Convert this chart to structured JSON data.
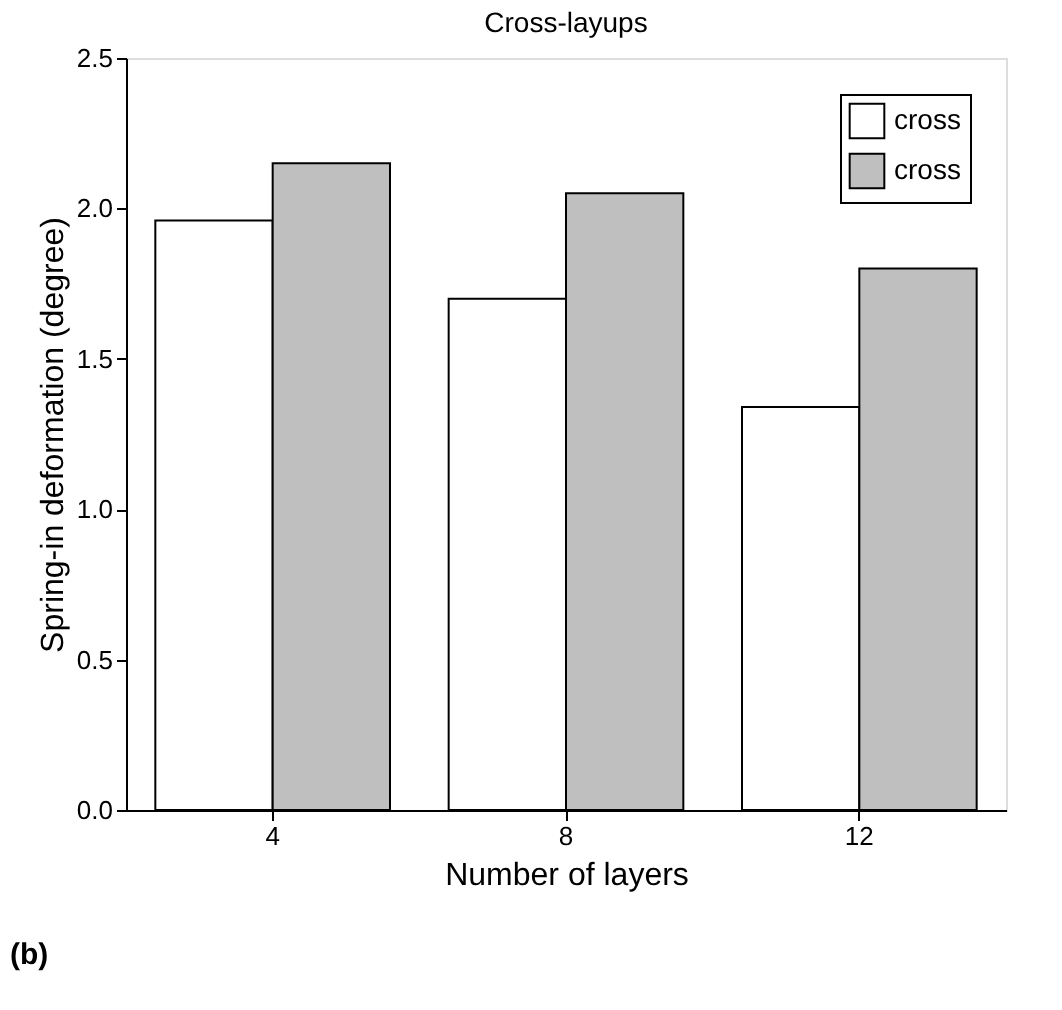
{
  "chart_data": {
    "type": "bar",
    "title": "Cross-layups",
    "xlabel": "Number of layers",
    "ylabel": "Spring-in deformation (degree)",
    "categories": [
      "4",
      "8",
      "12"
    ],
    "series": [
      {
        "name": "cross",
        "color": "#ffffff",
        "values": [
          1.96,
          1.7,
          1.34
        ]
      },
      {
        "name": "cross",
        "color": "#bfbfbf",
        "values": [
          2.15,
          2.05,
          1.8
        ]
      }
    ],
    "ylim": [
      0,
      2.5
    ],
    "yticks": [
      {
        "value": 0,
        "label": "0.0"
      },
      0.5,
      {
        "value": 1,
        "label": "1.0"
      },
      1.5,
      {
        "value": 2,
        "label": "2.0"
      },
      2.5
    ],
    "grid": false,
    "legend": "top right",
    "annotations": [
      "(b)"
    ]
  }
}
